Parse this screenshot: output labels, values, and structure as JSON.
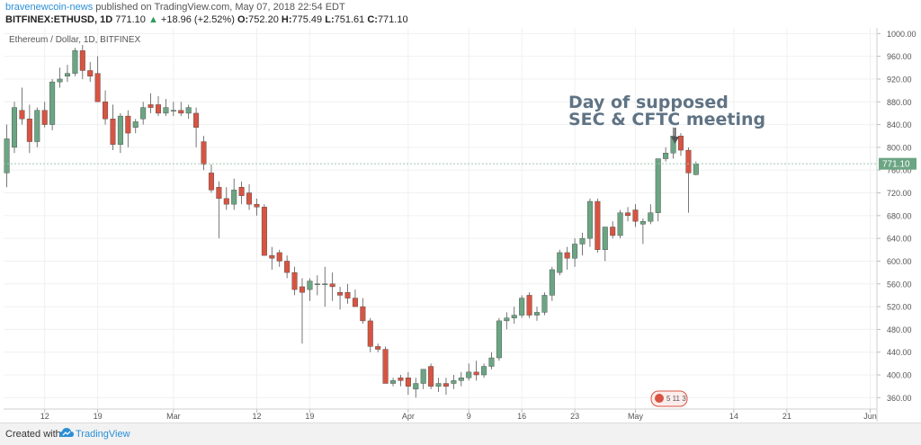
{
  "header": {
    "author": "bravenewcoin-news",
    "published_text": "published on TradingView.com, May 07, 2018 22:54 EDT",
    "symbol": "BITFINEX:ETHUSD, 1D",
    "last": "771.10",
    "change": "+18.96 (+2.52%)",
    "o_label": "O:",
    "o_value": "752.20",
    "h_label": "H:",
    "h_value": "775.49",
    "l_label": "L:",
    "l_value": "751.61",
    "c_label": "C:",
    "c_value": "771.10"
  },
  "footer": {
    "created": "Created with",
    "brand": "TradingView"
  },
  "chart_data": {
    "type": "candlestick",
    "title": "Ethereum / Dollar, 1D, BITFINEX",
    "ylim": [
      340,
      1010
    ],
    "y_ticks": [
      "1000.00",
      "960.00",
      "920.00",
      "880.00",
      "840.00",
      "800.00",
      "760.00",
      "720.00",
      "680.00",
      "640.00",
      "600.00",
      "560.00",
      "520.00",
      "480.00",
      "440.00",
      "400.00",
      "360.00"
    ],
    "x_ticks": [
      {
        "label": "12",
        "day": 5
      },
      {
        "label": "19",
        "day": 12
      },
      {
        "label": "Mar",
        "day": 22
      },
      {
        "label": "12",
        "day": 33
      },
      {
        "label": "19",
        "day": 40
      },
      {
        "label": "Apr",
        "day": 53
      },
      {
        "label": "9",
        "day": 61
      },
      {
        "label": "16",
        "day": 68
      },
      {
        "label": "23",
        "day": 75
      },
      {
        "label": "May",
        "day": 83
      },
      {
        "label": "14",
        "day": 96
      },
      {
        "label": "21",
        "day": 103
      },
      {
        "label": "Jun",
        "day": 114
      }
    ],
    "last_price": 771.1,
    "last_price_label": "771.10",
    "up_color": "#6ba583",
    "down_color": "#d75442",
    "annotation": {
      "line1": "Day of supposed",
      "line2": "SEC & CFTC meeting",
      "target_day": 88
    },
    "event_badge": "5 11 3",
    "candles": [
      {
        "o": 755,
        "h": 840,
        "l": 730,
        "c": 815
      },
      {
        "o": 800,
        "h": 880,
        "l": 790,
        "c": 870
      },
      {
        "o": 865,
        "h": 905,
        "l": 840,
        "c": 850
      },
      {
        "o": 850,
        "h": 875,
        "l": 790,
        "c": 810
      },
      {
        "o": 810,
        "h": 870,
        "l": 800,
        "c": 865
      },
      {
        "o": 865,
        "h": 880,
        "l": 835,
        "c": 840
      },
      {
        "o": 840,
        "h": 920,
        "l": 830,
        "c": 915
      },
      {
        "o": 915,
        "h": 940,
        "l": 905,
        "c": 920
      },
      {
        "o": 925,
        "h": 945,
        "l": 915,
        "c": 930
      },
      {
        "o": 930,
        "h": 975,
        "l": 925,
        "c": 970
      },
      {
        "o": 970,
        "h": 980,
        "l": 920,
        "c": 935
      },
      {
        "o": 935,
        "h": 950,
        "l": 915,
        "c": 925
      },
      {
        "o": 930,
        "h": 960,
        "l": 880,
        "c": 880
      },
      {
        "o": 880,
        "h": 900,
        "l": 840,
        "c": 850
      },
      {
        "o": 850,
        "h": 875,
        "l": 795,
        "c": 805
      },
      {
        "o": 805,
        "h": 860,
        "l": 790,
        "c": 855
      },
      {
        "o": 855,
        "h": 865,
        "l": 800,
        "c": 825
      },
      {
        "o": 835,
        "h": 850,
        "l": 825,
        "c": 845
      },
      {
        "o": 850,
        "h": 880,
        "l": 840,
        "c": 870
      },
      {
        "o": 875,
        "h": 895,
        "l": 860,
        "c": 870
      },
      {
        "o": 875,
        "h": 890,
        "l": 855,
        "c": 860
      },
      {
        "o": 860,
        "h": 885,
        "l": 855,
        "c": 870
      },
      {
        "o": 865,
        "h": 880,
        "l": 855,
        "c": 865
      },
      {
        "o": 865,
        "h": 880,
        "l": 855,
        "c": 860
      },
      {
        "o": 860,
        "h": 875,
        "l": 850,
        "c": 870
      },
      {
        "o": 860,
        "h": 870,
        "l": 800,
        "c": 835
      },
      {
        "o": 810,
        "h": 820,
        "l": 760,
        "c": 770
      },
      {
        "o": 755,
        "h": 770,
        "l": 720,
        "c": 725
      },
      {
        "o": 730,
        "h": 740,
        "l": 640,
        "c": 710
      },
      {
        "o": 710,
        "h": 730,
        "l": 690,
        "c": 700
      },
      {
        "o": 700,
        "h": 745,
        "l": 690,
        "c": 725
      },
      {
        "o": 730,
        "h": 740,
        "l": 700,
        "c": 715
      },
      {
        "o": 720,
        "h": 735,
        "l": 690,
        "c": 700
      },
      {
        "o": 700,
        "h": 710,
        "l": 680,
        "c": 695
      },
      {
        "o": 695,
        "h": 700,
        "l": 610,
        "c": 610
      },
      {
        "o": 610,
        "h": 625,
        "l": 585,
        "c": 605
      },
      {
        "o": 615,
        "h": 620,
        "l": 590,
        "c": 600
      },
      {
        "o": 600,
        "h": 610,
        "l": 570,
        "c": 580
      },
      {
        "o": 580,
        "h": 590,
        "l": 540,
        "c": 550
      },
      {
        "o": 555,
        "h": 570,
        "l": 455,
        "c": 545
      },
      {
        "o": 550,
        "h": 570,
        "l": 530,
        "c": 565
      },
      {
        "o": 560,
        "h": 575,
        "l": 540,
        "c": 560
      },
      {
        "o": 560,
        "h": 590,
        "l": 520,
        "c": 560
      },
      {
        "o": 560,
        "h": 580,
        "l": 530,
        "c": 555
      },
      {
        "o": 545,
        "h": 555,
        "l": 515,
        "c": 540
      },
      {
        "o": 545,
        "h": 560,
        "l": 525,
        "c": 535
      },
      {
        "o": 535,
        "h": 550,
        "l": 520,
        "c": 520
      },
      {
        "o": 520,
        "h": 535,
        "l": 490,
        "c": 495
      },
      {
        "o": 495,
        "h": 500,
        "l": 440,
        "c": 450
      },
      {
        "o": 450,
        "h": 455,
        "l": 440,
        "c": 445
      },
      {
        "o": 445,
        "h": 450,
        "l": 385,
        "c": 385
      },
      {
        "o": 385,
        "h": 395,
        "l": 380,
        "c": 390
      },
      {
        "o": 395,
        "h": 400,
        "l": 380,
        "c": 390
      },
      {
        "o": 395,
        "h": 405,
        "l": 365,
        "c": 380
      },
      {
        "o": 375,
        "h": 395,
        "l": 360,
        "c": 385
      },
      {
        "o": 385,
        "h": 410,
        "l": 375,
        "c": 410
      },
      {
        "o": 415,
        "h": 420,
        "l": 375,
        "c": 380
      },
      {
        "o": 380,
        "h": 395,
        "l": 370,
        "c": 385
      },
      {
        "o": 385,
        "h": 395,
        "l": 365,
        "c": 380
      },
      {
        "o": 385,
        "h": 400,
        "l": 375,
        "c": 390
      },
      {
        "o": 390,
        "h": 405,
        "l": 380,
        "c": 395
      },
      {
        "o": 395,
        "h": 420,
        "l": 390,
        "c": 405
      },
      {
        "o": 405,
        "h": 425,
        "l": 390,
        "c": 400
      },
      {
        "o": 400,
        "h": 420,
        "l": 395,
        "c": 415
      },
      {
        "o": 415,
        "h": 440,
        "l": 410,
        "c": 430
      },
      {
        "o": 430,
        "h": 500,
        "l": 425,
        "c": 495
      },
      {
        "o": 495,
        "h": 510,
        "l": 480,
        "c": 500
      },
      {
        "o": 500,
        "h": 520,
        "l": 490,
        "c": 505
      },
      {
        "o": 505,
        "h": 540,
        "l": 500,
        "c": 535
      },
      {
        "o": 540,
        "h": 545,
        "l": 500,
        "c": 505
      },
      {
        "o": 505,
        "h": 520,
        "l": 495,
        "c": 510
      },
      {
        "o": 510,
        "h": 545,
        "l": 505,
        "c": 540
      },
      {
        "o": 540,
        "h": 590,
        "l": 530,
        "c": 585
      },
      {
        "o": 580,
        "h": 620,
        "l": 575,
        "c": 615
      },
      {
        "o": 615,
        "h": 625,
        "l": 585,
        "c": 605
      },
      {
        "o": 605,
        "h": 640,
        "l": 590,
        "c": 630
      },
      {
        "o": 630,
        "h": 650,
        "l": 610,
        "c": 640
      },
      {
        "o": 640,
        "h": 710,
        "l": 625,
        "c": 705
      },
      {
        "o": 705,
        "h": 710,
        "l": 615,
        "c": 620
      },
      {
        "o": 620,
        "h": 660,
        "l": 600,
        "c": 660
      },
      {
        "o": 660,
        "h": 670,
        "l": 640,
        "c": 645
      },
      {
        "o": 645,
        "h": 690,
        "l": 640,
        "c": 685
      },
      {
        "o": 685,
        "h": 695,
        "l": 670,
        "c": 680
      },
      {
        "o": 690,
        "h": 700,
        "l": 660,
        "c": 670
      },
      {
        "o": 665,
        "h": 675,
        "l": 630,
        "c": 670
      },
      {
        "o": 670,
        "h": 700,
        "l": 665,
        "c": 685
      },
      {
        "o": 685,
        "h": 780,
        "l": 670,
        "c": 780
      },
      {
        "o": 780,
        "h": 800,
        "l": 775,
        "c": 790
      },
      {
        "o": 790,
        "h": 835,
        "l": 780,
        "c": 820
      },
      {
        "o": 820,
        "h": 825,
        "l": 785,
        "c": 795
      },
      {
        "o": 795,
        "h": 800,
        "l": 685,
        "c": 755
      },
      {
        "o": 752,
        "h": 775,
        "l": 751,
        "c": 771
      }
    ]
  }
}
